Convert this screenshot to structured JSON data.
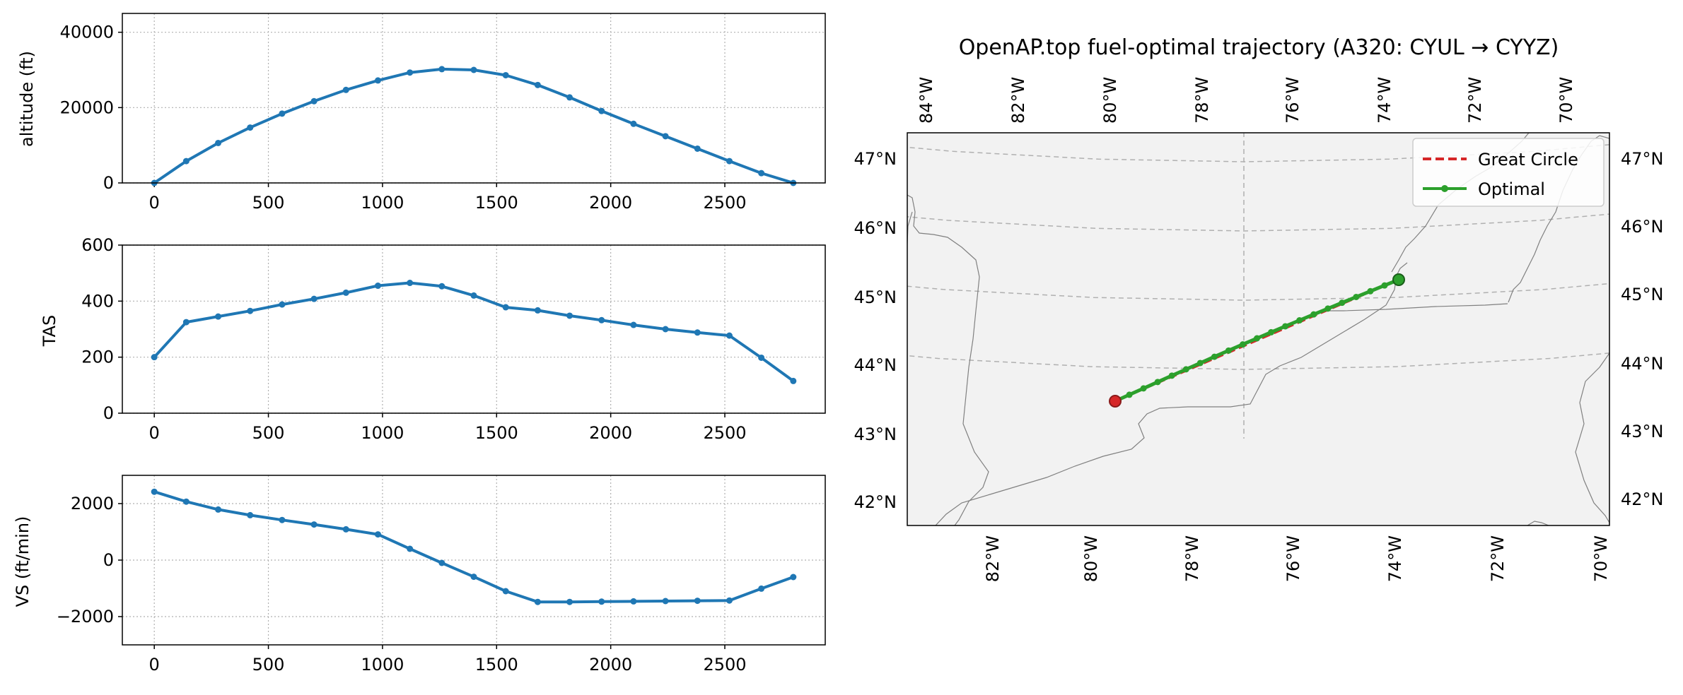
{
  "chart_data": [
    {
      "type": "line",
      "ylabel": "altitude (ft)",
      "xlim": [
        -140,
        2940
      ],
      "ylim": [
        0,
        45000
      ],
      "xticks": [
        0,
        500,
        1000,
        1500,
        2000,
        2500
      ],
      "yticks": [
        0,
        20000,
        40000
      ],
      "grid": true,
      "color": "#1f77b4",
      "series": [
        {
          "x": [
            0,
            140,
            280,
            420,
            560,
            700,
            840,
            980,
            1120,
            1260,
            1400,
            1540,
            1680,
            1820,
            1960,
            2100,
            2240,
            2380,
            2520,
            2660,
            2800
          ],
          "y": [
            0,
            5800,
            10600,
            14700,
            18400,
            21700,
            24700,
            27200,
            29300,
            30200,
            30000,
            28600,
            26000,
            22700,
            19100,
            15700,
            12400,
            9100,
            5800,
            2600,
            0
          ]
        }
      ]
    },
    {
      "type": "line",
      "ylabel": "TAS",
      "xlim": [
        -140,
        2940
      ],
      "ylim": [
        0,
        600
      ],
      "xticks": [
        0,
        500,
        1000,
        1500,
        2000,
        2500
      ],
      "yticks": [
        0,
        200,
        400,
        600
      ],
      "grid": true,
      "color": "#1f77b4",
      "series": [
        {
          "x": [
            0,
            140,
            280,
            420,
            560,
            700,
            840,
            980,
            1120,
            1260,
            1400,
            1540,
            1680,
            1820,
            1960,
            2100,
            2240,
            2380,
            2520,
            2660,
            2800
          ],
          "y": [
            200,
            325,
            345,
            365,
            388,
            408,
            430,
            455,
            465,
            453,
            420,
            378,
            367,
            348,
            332,
            315,
            300,
            288,
            277,
            198,
            115
          ]
        }
      ]
    },
    {
      "type": "line",
      "ylabel": "VS (ft/min)",
      "xlim": [
        -140,
        2940
      ],
      "ylim": [
        -3000,
        3000
      ],
      "xticks": [
        0,
        500,
        1000,
        1500,
        2000,
        2500
      ],
      "yticks": [
        -2000,
        0,
        2000
      ],
      "grid": true,
      "color": "#1f77b4",
      "series": [
        {
          "x": [
            0,
            140,
            280,
            420,
            560,
            700,
            840,
            980,
            1120,
            1260,
            1400,
            1540,
            1680,
            1820,
            1960,
            2100,
            2240,
            2380,
            2520,
            2660,
            2800
          ],
          "y": [
            2420,
            2070,
            1790,
            1590,
            1420,
            1260,
            1090,
            910,
            400,
            -100,
            -590,
            -1100,
            -1480,
            -1480,
            -1470,
            -1460,
            -1450,
            -1440,
            -1430,
            -1010,
            -600
          ]
        }
      ]
    },
    {
      "type": "map",
      "title": "OpenAP.top fuel-optimal trajectory (A320: CYUL → CYYZ)",
      "lon_top_ticks": [
        "84°W",
        "82°W",
        "80°W",
        "78°W",
        "76°W",
        "74°W",
        "72°W",
        "70°W"
      ],
      "lon_bottom_ticks": [
        "82°W",
        "80°W",
        "78°W",
        "76°W",
        "74°W",
        "72°W",
        "70°W"
      ],
      "lat_left_ticks": [
        "47°N",
        "46°N",
        "45°N",
        "44°N",
        "43°N",
        "42°N"
      ],
      "lat_right_ticks": [
        "47°N",
        "46°N",
        "45°N",
        "44°N",
        "43°N",
        "42°N"
      ],
      "legend_position": "top-right",
      "legend": [
        {
          "label": "Great Circle",
          "color": "#d62728",
          "style": "dashed"
        },
        {
          "label": "Optimal",
          "color": "#2ca02c",
          "style": "solid-marker"
        }
      ],
      "origin": {
        "lon": -73.74,
        "lat": 45.47
      },
      "destination": {
        "lon": -79.63,
        "lat": 43.68
      },
      "optimal_steps": 20
    }
  ]
}
